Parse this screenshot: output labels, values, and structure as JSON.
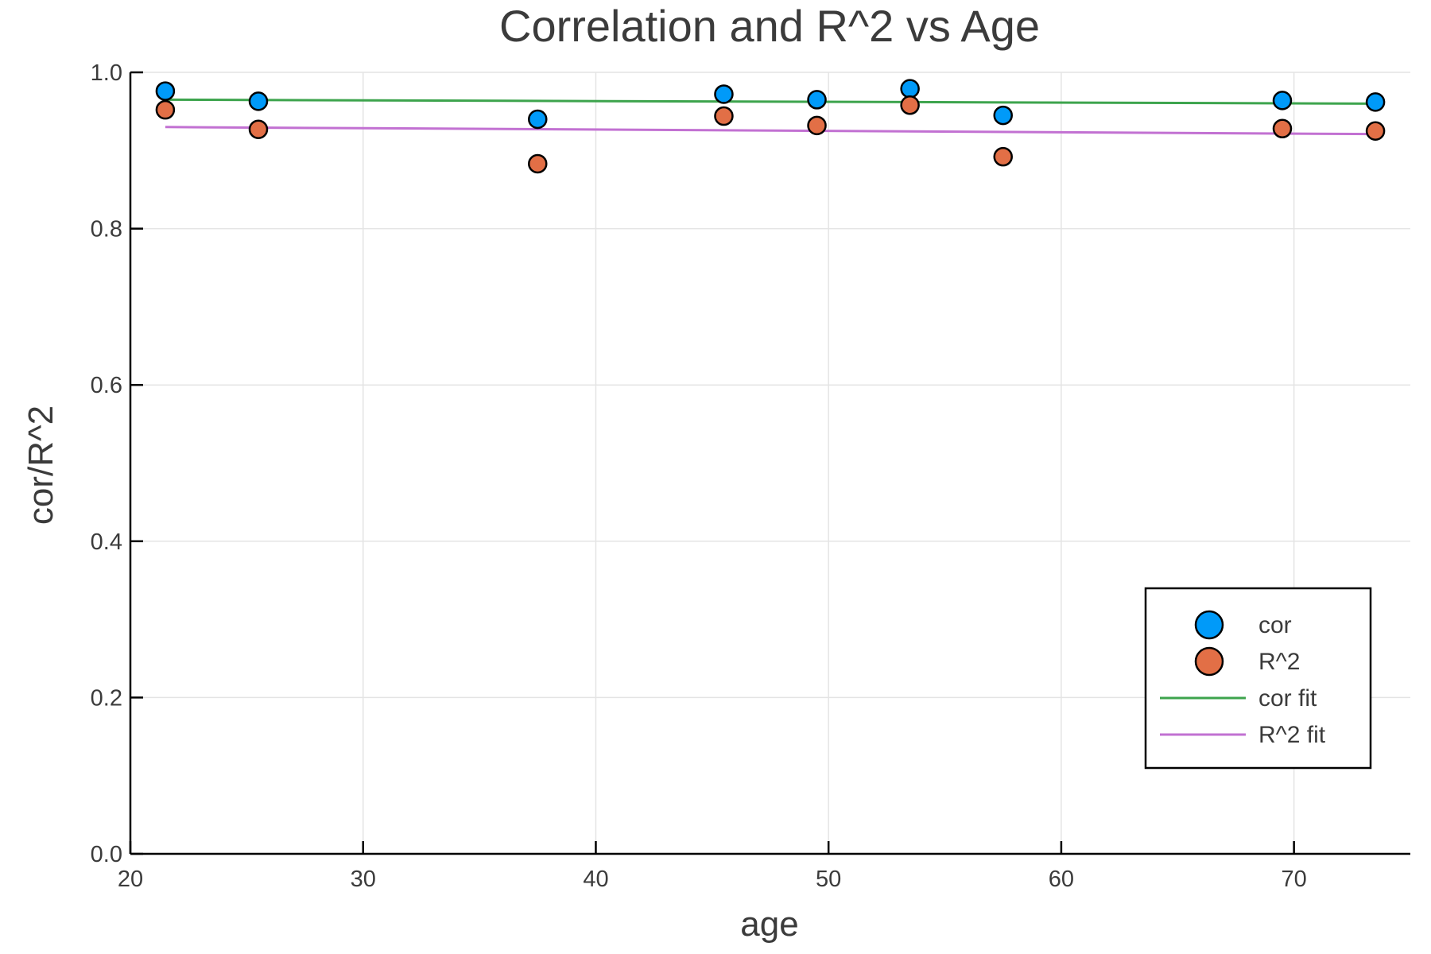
{
  "chart_data": {
    "type": "scatter",
    "title": "Correlation and R^2 vs Age",
    "xlabel": "age",
    "ylabel": "cor/R^2",
    "xlim": [
      20,
      75
    ],
    "ylim": [
      0.0,
      1.0
    ],
    "xticks": [
      "20",
      "30",
      "40",
      "50",
      "60",
      "70"
    ],
    "yticks": [
      "0.0",
      "0.2",
      "0.4",
      "0.6",
      "0.8",
      "1.0"
    ],
    "grid": true,
    "legend_position": "bottom-right",
    "series": [
      {
        "name": "cor",
        "kind": "scatter",
        "color": "#009af9",
        "x": [
          21.5,
          25.5,
          37.5,
          45.5,
          49.5,
          53.5,
          57.5,
          69.5,
          73.5
        ],
        "y": [
          0.976,
          0.963,
          0.94,
          0.972,
          0.965,
          0.979,
          0.945,
          0.964,
          0.962
        ]
      },
      {
        "name": "R^2",
        "kind": "scatter",
        "color": "#e26f46",
        "x": [
          21.5,
          25.5,
          37.5,
          45.5,
          49.5,
          53.5,
          57.5,
          69.5,
          73.5
        ],
        "y": [
          0.952,
          0.927,
          0.883,
          0.944,
          0.932,
          0.958,
          0.892,
          0.928,
          0.925
        ]
      },
      {
        "name": "cor fit",
        "kind": "line",
        "color": "#3da44d",
        "x": [
          21.5,
          73.5
        ],
        "y": [
          0.965,
          0.96
        ]
      },
      {
        "name": "R^2 fit",
        "kind": "line",
        "color": "#c271d2",
        "x": [
          21.5,
          73.5
        ],
        "y": [
          0.93,
          0.921
        ]
      }
    ]
  }
}
